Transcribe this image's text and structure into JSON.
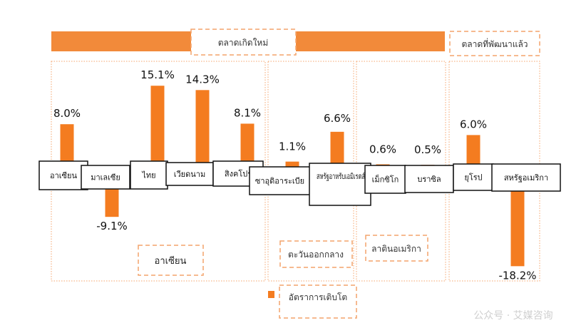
{
  "colors": {
    "bar": "#F47C20",
    "band": "#F28A3A",
    "dash": "#F4A46C",
    "box_border": "#111111"
  },
  "header": {
    "emerging_label": "ตลาดเกิดใหม่",
    "developed_label": "ตลาดที่พัฒนาแล้ว"
  },
  "groups": {
    "asean": "อาเซียน",
    "middle_east": "ตะวันออกกลาง",
    "latin_america": "ลาตินอเมริกา"
  },
  "legend": {
    "label": "อัตราการเติบโต"
  },
  "watermark": "公众号 · 艾媒咨询",
  "chart_data": {
    "type": "bar",
    "categories": [
      "อาเซียน",
      "มาเลเซีย",
      "ไทย",
      "เวียดนาม",
      "สิงคโปร์",
      "ซาอุดิอาระเบีย",
      "สหรัฐอาหรับเอมิเรตส์",
      "เม็กซิโก",
      "บราซิล",
      "ยุโรป",
      "สหรัฐอเมริกา"
    ],
    "series": [
      {
        "name": "อัตราการเติบโต",
        "values": [
          8.0,
          -9.1,
          15.1,
          14.3,
          8.1,
          1.1,
          6.6,
          0.6,
          0.5,
          6.0,
          -18.2
        ]
      }
    ],
    "value_labels": [
      "8.0%",
      "-9.1%",
      "15.1%",
      "14.3%",
      "8.1%",
      "1.1%",
      "6.6%",
      "0.6%",
      "0.5%",
      "6.0%",
      "-18.2%"
    ],
    "unit": "%"
  }
}
